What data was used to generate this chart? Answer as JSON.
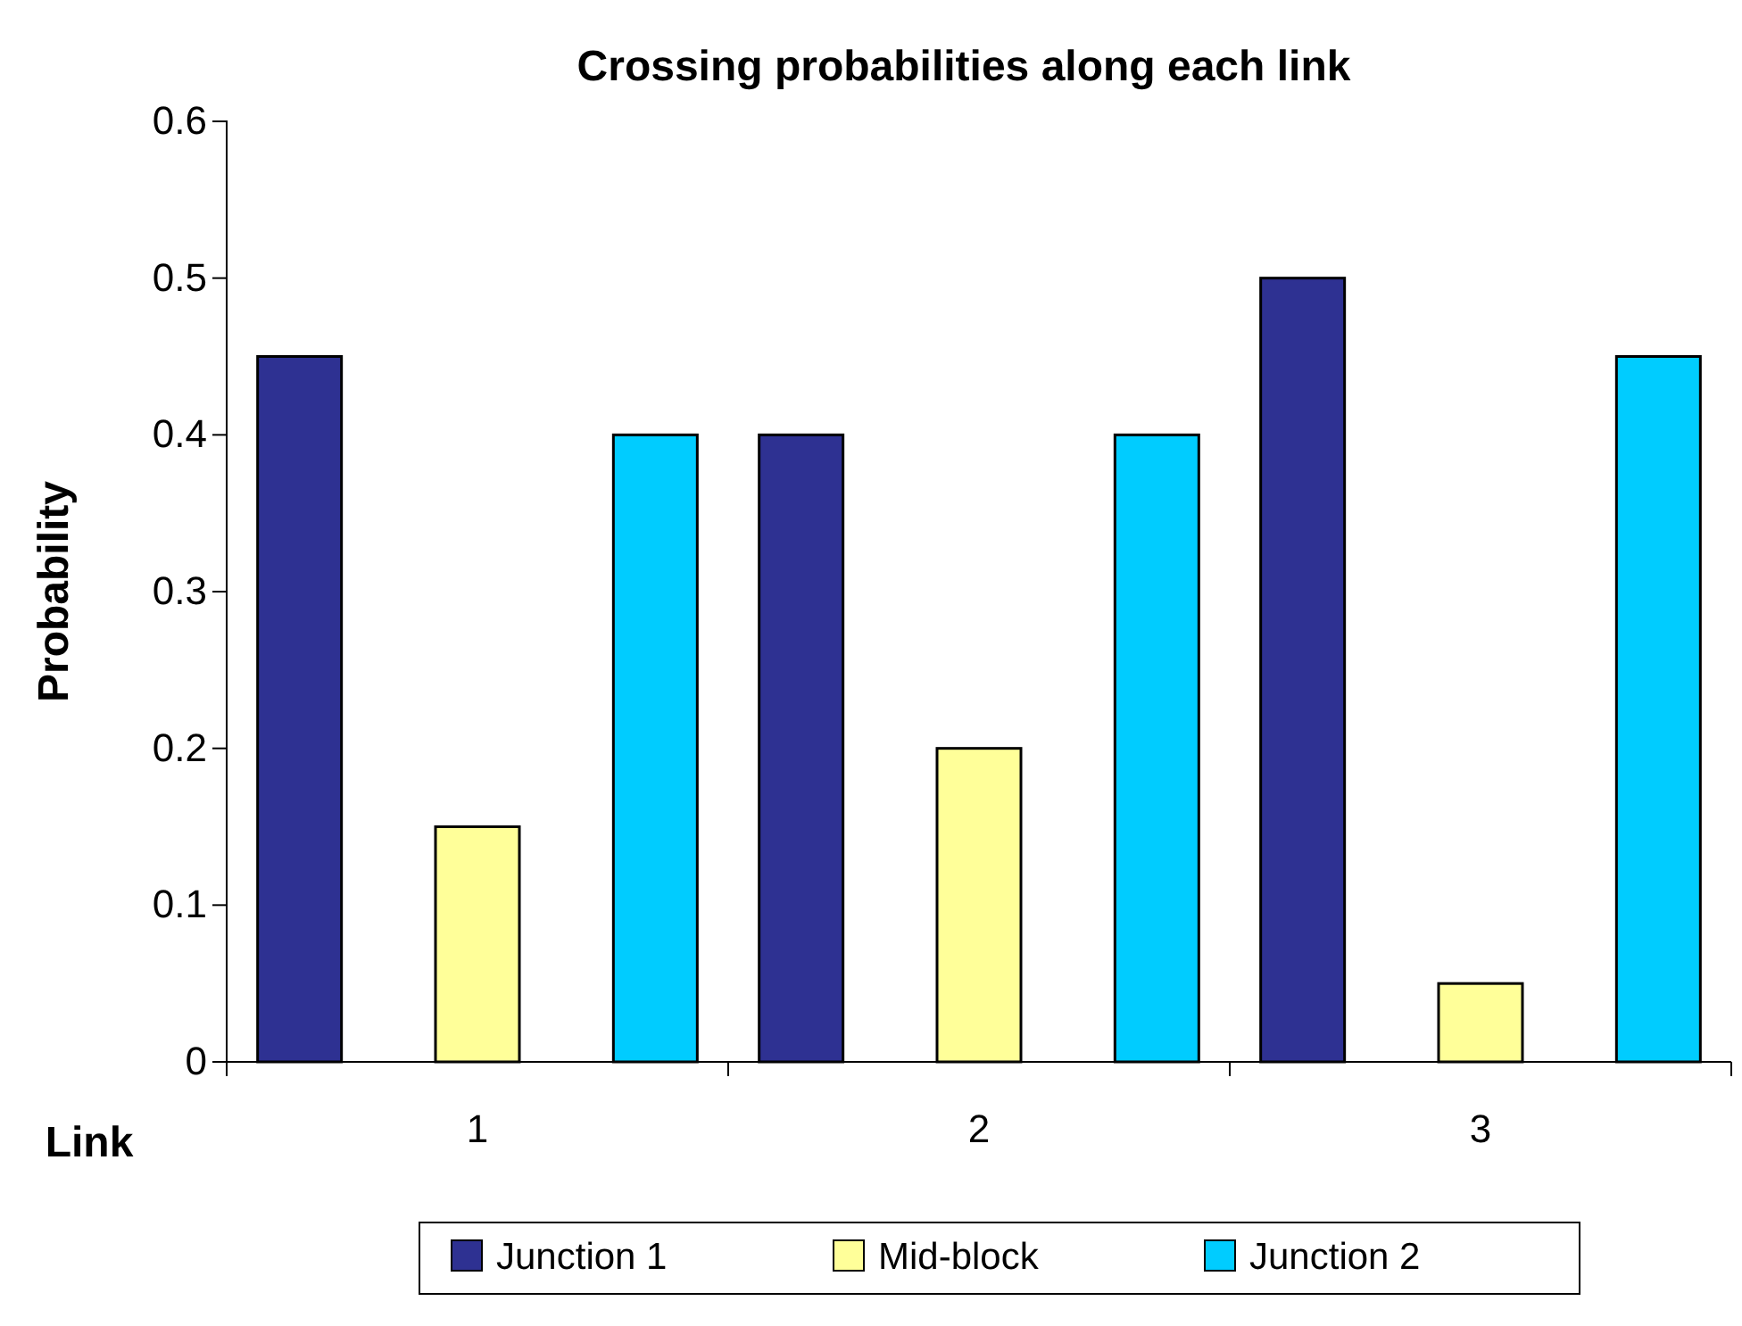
{
  "chart_data": {
    "type": "bar",
    "title": "Crossing probabilities along each link",
    "xlabel": "Link",
    "ylabel": "Probability",
    "categories": [
      "1",
      "2",
      "3"
    ],
    "series": [
      {
        "name": "Junction 1",
        "color": "#2e3192",
        "values": [
          0.45,
          0.4,
          0.5
        ]
      },
      {
        "name": "Mid-block",
        "color": "#ffff99",
        "values": [
          0.15,
          0.2,
          0.05
        ]
      },
      {
        "name": "Junction 2",
        "color": "#00ccff",
        "values": [
          0.4,
          0.4,
          0.45
        ]
      }
    ],
    "ylim": [
      0,
      0.6
    ],
    "yticks": [
      0,
      0.1,
      0.2,
      0.3,
      0.4,
      0.5,
      0.6
    ],
    "grid": false,
    "legend": "bottom"
  }
}
